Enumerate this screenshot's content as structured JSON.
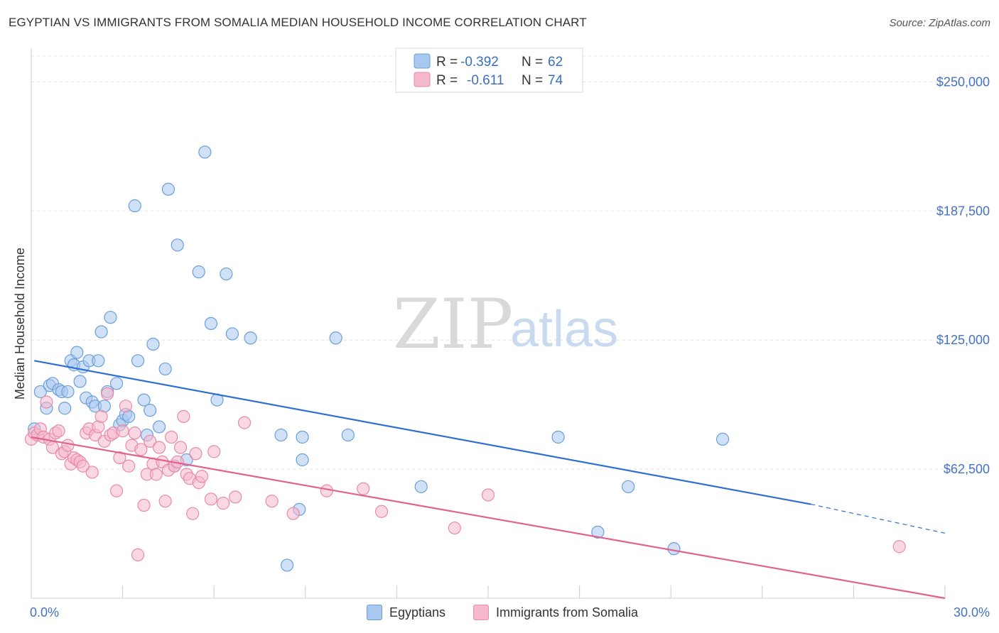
{
  "title": "EGYPTIAN VS IMMIGRANTS FROM SOMALIA MEDIAN HOUSEHOLD INCOME CORRELATION CHART",
  "source": "Source: ZipAtlas.com",
  "watermark": {
    "zip": "ZIP",
    "atlas": "atlas"
  },
  "legend_top": [
    {
      "r_label": "R =",
      "r_value": "-0.392",
      "n_label": "N =",
      "n_value": "62"
    },
    {
      "r_label": "R =",
      "r_value": "-0.611",
      "n_label": "N =",
      "n_value": "74"
    }
  ],
  "colors": {
    "blue_fill": "#a9c8f0",
    "blue_stroke": "#6a9fd8",
    "blue_line": "#2f6fd0",
    "pink_fill": "#f6b8cc",
    "pink_stroke": "#e88aa8",
    "pink_line": "#e0628e",
    "tick_text": "#4472c4",
    "grid": "#e3e3e3"
  },
  "chart_data": {
    "type": "scatter",
    "xlabel": "",
    "ylabel": "Median Household Income",
    "xlim": [
      0,
      30
    ],
    "ylim": [
      0,
      262500
    ],
    "x_tick_labels": [
      "0.0%",
      "30.0%"
    ],
    "y_ticks": [
      62500,
      125000,
      187500,
      250000
    ],
    "y_tick_labels": [
      "$62,500",
      "$125,000",
      "$187,500",
      "$250,000"
    ],
    "grid": true,
    "legend_position": "top-center",
    "series": [
      {
        "name": "Egyptians",
        "color": "#a9c8f0",
        "trend": {
          "x0": 0.1,
          "y0": 115000,
          "x1": 25.6,
          "y1": 45500,
          "dash_x1": 30.0,
          "dash_y1": 31500
        },
        "points": [
          [
            0.1,
            82000
          ],
          [
            0.3,
            100000
          ],
          [
            0.5,
            92000
          ],
          [
            0.6,
            103000
          ],
          [
            0.7,
            104000
          ],
          [
            0.9,
            101000
          ],
          [
            1.0,
            100000
          ],
          [
            1.1,
            92000
          ],
          [
            1.2,
            100000
          ],
          [
            1.3,
            115000
          ],
          [
            1.4,
            113000
          ],
          [
            1.5,
            119000
          ],
          [
            1.6,
            105000
          ],
          [
            1.7,
            112000
          ],
          [
            1.8,
            97000
          ],
          [
            1.9,
            115000
          ],
          [
            2.0,
            95000
          ],
          [
            2.1,
            93000
          ],
          [
            2.2,
            115000
          ],
          [
            2.3,
            129000
          ],
          [
            2.4,
            93000
          ],
          [
            2.5,
            100000
          ],
          [
            2.6,
            136000
          ],
          [
            2.8,
            104000
          ],
          [
            2.9,
            84000
          ],
          [
            3.0,
            86000
          ],
          [
            3.1,
            89000
          ],
          [
            3.2,
            88000
          ],
          [
            3.4,
            190000
          ],
          [
            3.5,
            115000
          ],
          [
            3.7,
            96000
          ],
          [
            3.8,
            79000
          ],
          [
            3.9,
            91000
          ],
          [
            4.0,
            123000
          ],
          [
            4.2,
            83000
          ],
          [
            4.4,
            111000
          ],
          [
            4.5,
            198000
          ],
          [
            4.7,
            64000
          ],
          [
            4.8,
            171000
          ],
          [
            5.1,
            67000
          ],
          [
            5.5,
            158000
          ],
          [
            5.7,
            216000
          ],
          [
            5.9,
            133000
          ],
          [
            6.1,
            96000
          ],
          [
            6.4,
            157000
          ],
          [
            6.6,
            128000
          ],
          [
            7.2,
            126000
          ],
          [
            8.2,
            79000
          ],
          [
            8.4,
            16000
          ],
          [
            8.8,
            43000
          ],
          [
            8.9,
            78000
          ],
          [
            8.9,
            67000
          ],
          [
            10.0,
            126000
          ],
          [
            10.4,
            79000
          ],
          [
            12.8,
            54000
          ],
          [
            17.3,
            78000
          ],
          [
            18.6,
            32000
          ],
          [
            19.6,
            54000
          ],
          [
            21.1,
            24000
          ],
          [
            22.7,
            77000
          ]
        ]
      },
      {
        "name": "Immigrants from Somalia",
        "color": "#f6b8cc",
        "trend": {
          "x0": 0.0,
          "y0": 78000,
          "x1": 30.0,
          "y1": 0
        },
        "points": [
          [
            0.0,
            77000
          ],
          [
            0.1,
            80000
          ],
          [
            0.2,
            79000
          ],
          [
            0.3,
            82000
          ],
          [
            0.4,
            78000
          ],
          [
            0.5,
            95000
          ],
          [
            0.6,
            77000
          ],
          [
            0.7,
            73000
          ],
          [
            0.8,
            80000
          ],
          [
            0.9,
            81000
          ],
          [
            1.0,
            70000
          ],
          [
            1.1,
            71000
          ],
          [
            1.2,
            74000
          ],
          [
            1.3,
            65000
          ],
          [
            1.4,
            68000
          ],
          [
            1.5,
            67000
          ],
          [
            1.6,
            66000
          ],
          [
            1.7,
            64000
          ],
          [
            1.8,
            80000
          ],
          [
            1.9,
            82000
          ],
          [
            2.0,
            61000
          ],
          [
            2.1,
            79000
          ],
          [
            2.2,
            83000
          ],
          [
            2.3,
            88000
          ],
          [
            2.4,
            76000
          ],
          [
            2.5,
            99000
          ],
          [
            2.6,
            79000
          ],
          [
            2.7,
            80000
          ],
          [
            2.8,
            52000
          ],
          [
            2.9,
            68000
          ],
          [
            3.0,
            81000
          ],
          [
            3.1,
            93000
          ],
          [
            3.2,
            64000
          ],
          [
            3.3,
            74000
          ],
          [
            3.4,
            80000
          ],
          [
            3.5,
            21000
          ],
          [
            3.6,
            72000
          ],
          [
            3.7,
            45000
          ],
          [
            3.8,
            60000
          ],
          [
            3.9,
            76000
          ],
          [
            4.0,
            65000
          ],
          [
            4.1,
            60000
          ],
          [
            4.2,
            73000
          ],
          [
            4.3,
            66000
          ],
          [
            4.4,
            47000
          ],
          [
            4.5,
            62000
          ],
          [
            4.6,
            78000
          ],
          [
            4.7,
            64000
          ],
          [
            4.8,
            66000
          ],
          [
            4.9,
            73000
          ],
          [
            5.0,
            88000
          ],
          [
            5.1,
            60000
          ],
          [
            5.2,
            58000
          ],
          [
            5.3,
            41000
          ],
          [
            5.4,
            70000
          ],
          [
            5.5,
            56000
          ],
          [
            5.6,
            59000
          ],
          [
            5.9,
            48000
          ],
          [
            6.0,
            71000
          ],
          [
            6.3,
            46000
          ],
          [
            6.7,
            49000
          ],
          [
            7.0,
            85000
          ],
          [
            7.9,
            47000
          ],
          [
            8.6,
            41000
          ],
          [
            9.7,
            52000
          ],
          [
            10.9,
            53000
          ],
          [
            11.5,
            42000
          ],
          [
            13.9,
            34000
          ],
          [
            15.0,
            50000
          ],
          [
            28.5,
            25000
          ]
        ]
      }
    ]
  }
}
